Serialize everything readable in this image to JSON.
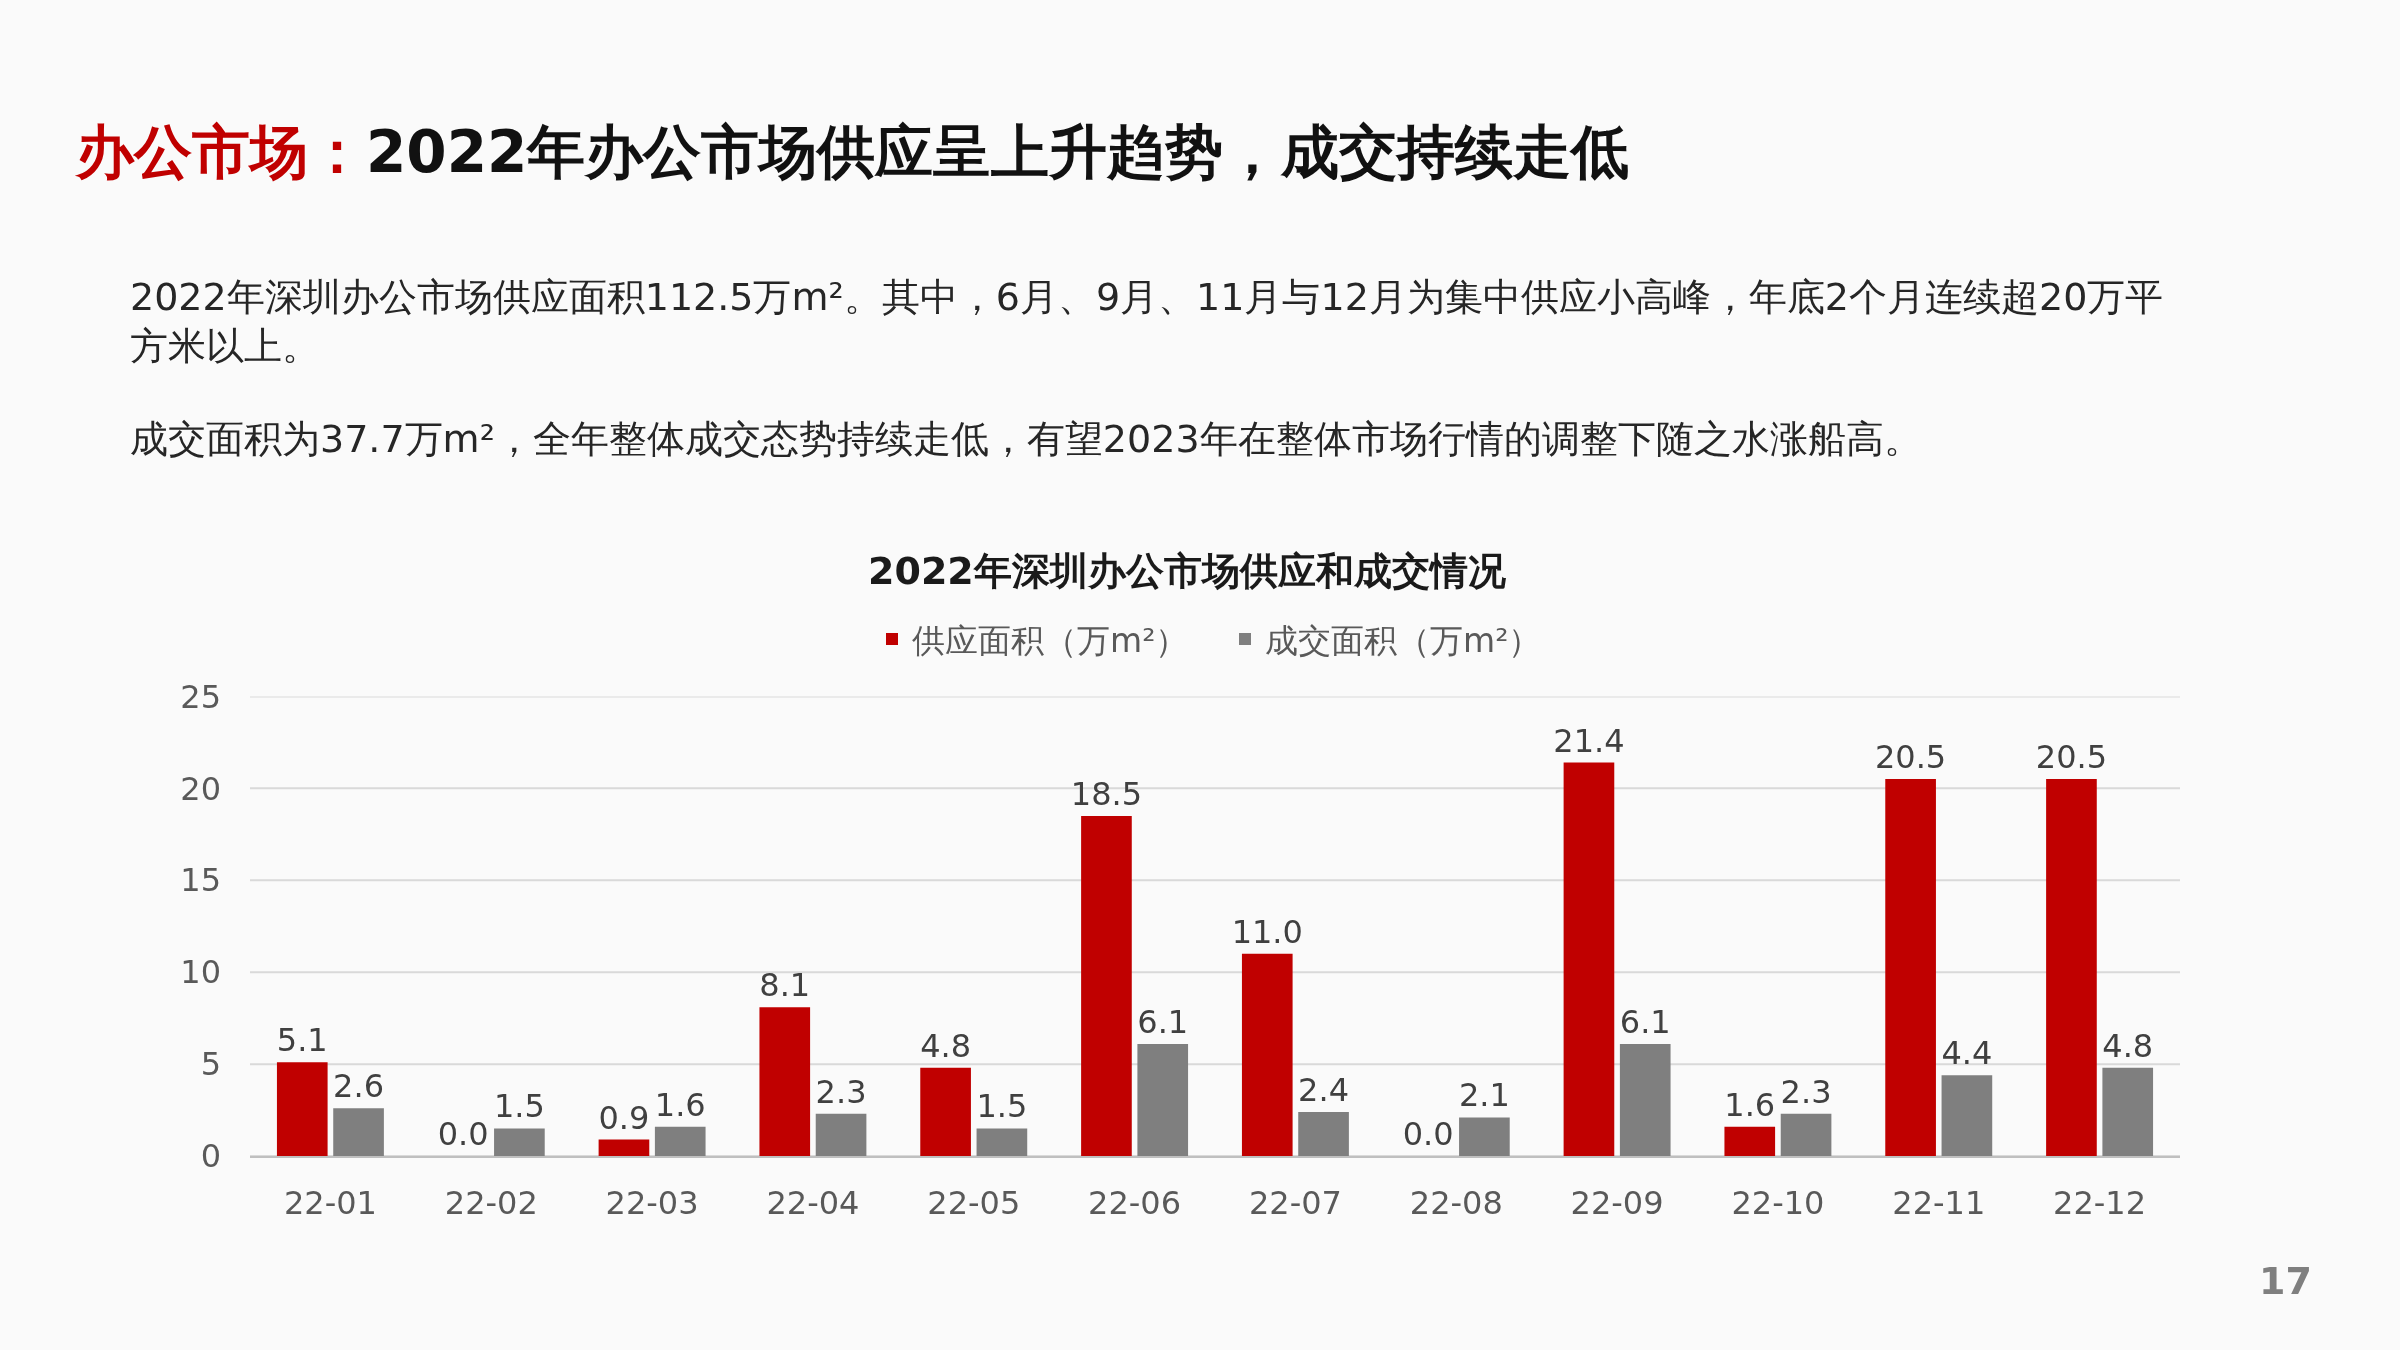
{
  "chart_data": {
    "type": "bar",
    "title": "办公市场：2022年办公市场供应呈上升趋势，成交持续走低",
    "subtitle": "2022年深圳办公市场供应和成交情况",
    "annotations": [
      "2022年深圳办公市场供应面积112.5万m²。其中，6月、9月、11月与12月为集中供应小高峰，年底2个月连续超20万平方米以上。",
      "成交面积为37.7万m²，全年整体成交态势持续走低，有望2023年在整体市场行情的调整下随之水涨船高。",
      "17"
    ],
    "categories": [
      "22-01",
      "22-02",
      "22-03",
      "22-04",
      "22-05",
      "22-06",
      "22-07",
      "22-08",
      "22-09",
      "22-10",
      "22-11",
      "22-12"
    ],
    "series": [
      {
        "name": "供应面积（万m²）",
        "color": "#c00000",
        "values": [
          5.1,
          0.0,
          0.9,
          8.1,
          4.8,
          18.5,
          11.0,
          0.0,
          21.4,
          1.6,
          20.5,
          20.5
        ],
        "value_labels": [
          "5.1",
          "0.0",
          "0.9",
          "8.1",
          "4.8",
          "18.5",
          "11.0",
          "0.0",
          "21.4",
          "1.6",
          "20.5",
          "20.5"
        ]
      },
      {
        "name": "成交面积（万m²）",
        "color": "#7f7f7f",
        "values": [
          2.6,
          1.5,
          1.6,
          2.3,
          1.5,
          6.1,
          2.4,
          2.1,
          6.1,
          2.3,
          4.4,
          4.8
        ],
        "value_labels": [
          "2.6",
          "1.5",
          "1.6",
          "2.3",
          "1.5",
          "6.1",
          "2.4",
          "2.1",
          "6.1",
          "2.3",
          "4.4",
          "4.8"
        ]
      }
    ],
    "ylim": [
      0,
      25
    ],
    "yticks": [
      0,
      5,
      10,
      15,
      20,
      25
    ],
    "grid": "y",
    "legend": "top"
  }
}
